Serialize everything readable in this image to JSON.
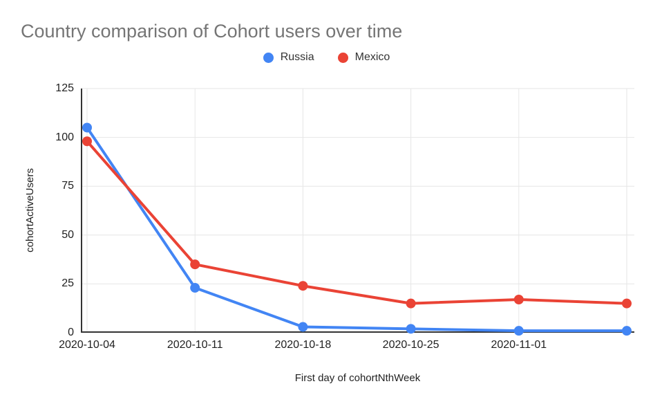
{
  "chart_data": {
    "type": "line",
    "title": "Country comparison of Cohort users over time",
    "xlabel": "First day of cohortNthWeek",
    "ylabel": "cohortActiveUsers",
    "categories": [
      "2020-10-04",
      "2020-10-11",
      "2020-10-18",
      "2020-10-25",
      "2020-11-01",
      ""
    ],
    "series": [
      {
        "name": "Russia",
        "color": "#4285F4",
        "values": [
          105,
          23,
          3,
          2,
          1,
          1
        ]
      },
      {
        "name": "Mexico",
        "color": "#EA4335",
        "values": [
          98,
          35,
          24,
          15,
          17,
          15
        ]
      }
    ],
    "ylim": [
      0,
      125
    ],
    "yticks": [
      0,
      25,
      50,
      75,
      100,
      125
    ],
    "grid": true,
    "legend_position": "top"
  },
  "styles": {
    "title_color": "#757575",
    "tick_label_color": "#1f1f1f",
    "gridline_color": "#e6e6e6",
    "axis_line_color": "#333333",
    "background": "#ffffff"
  }
}
